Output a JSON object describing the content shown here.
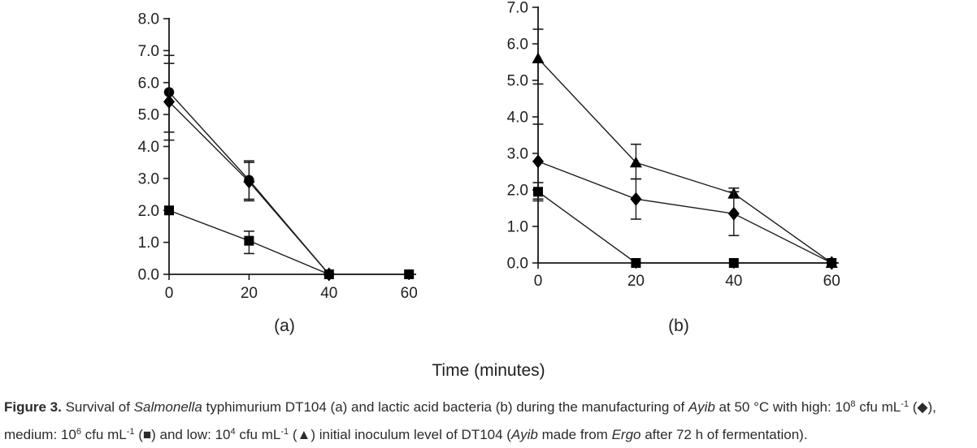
{
  "figure": {
    "x_axis_title": "Time (minutes)",
    "panel_a_label": "(a)",
    "panel_b_label": "(b)"
  },
  "colors": {
    "line": "#1c1c1c",
    "marker": "#000000",
    "axis": "#1a1a1a",
    "text": "#1f1f1f"
  },
  "chart_data": [
    {
      "type": "line",
      "panel": "(a)",
      "title": "Survival of Salmonella typhimurium DT104",
      "xlabel": "Time (minutes)",
      "ylabel": "",
      "xlim": [
        0,
        62
      ],
      "ylim": [
        0,
        8
      ],
      "xticks": [
        0,
        20,
        40,
        60
      ],
      "yticks": [
        "0.0",
        "1.0",
        "2.0",
        "3.0",
        "4.0",
        "5.0",
        "6.0",
        "7.0",
        "8.0"
      ],
      "grid": false,
      "legend": "none",
      "series": [
        {
          "name": "circle-series",
          "marker": "circle",
          "x": [
            0,
            20,
            40
          ],
          "y": [
            5.7,
            2.95,
            0
          ],
          "err": [
            [
              4.45,
              6.85
            ],
            [
              2.3,
              3.55
            ],
            null
          ]
        },
        {
          "name": "diamond-series-high-inoculum",
          "marker": "diamond",
          "x": [
            0,
            20,
            40
          ],
          "y": [
            5.4,
            2.9,
            0
          ],
          "err": [
            [
              4.2,
              6.6
            ],
            [
              2.35,
              3.5
            ],
            null
          ]
        },
        {
          "name": "square-series-medium-inoculum",
          "marker": "square",
          "x": [
            0,
            20,
            40,
            60
          ],
          "y": [
            2.0,
            1.05,
            0,
            0
          ],
          "err": [
            null,
            [
              0.65,
              1.35
            ],
            null,
            null
          ]
        }
      ]
    },
    {
      "type": "line",
      "panel": "(b)",
      "title": "Lactic acid bacteria",
      "xlabel": "Time (minutes)",
      "ylabel": "",
      "xlim": [
        0,
        62
      ],
      "ylim": [
        0,
        7
      ],
      "xticks": [
        0,
        20,
        40,
        60
      ],
      "yticks": [
        "0.0",
        "1.0",
        "2.0",
        "3.0",
        "4.0",
        "5.0",
        "6.0",
        "7.0"
      ],
      "grid": false,
      "legend": "none",
      "series": [
        {
          "name": "triangle-series-low-inoculum",
          "marker": "triangle",
          "x": [
            0,
            20,
            40,
            60
          ],
          "y": [
            5.6,
            2.75,
            1.9,
            0
          ],
          "err": [
            [
              4.9,
              6.4
            ],
            [
              2.3,
              3.25
            ],
            [
              1.78,
              2.05
            ],
            null
          ]
        },
        {
          "name": "diamond-series-high-inoculum",
          "marker": "diamond",
          "x": [
            0,
            20,
            40,
            60
          ],
          "y": [
            2.78,
            1.75,
            1.35,
            0
          ],
          "err": [
            [
              1.75,
              3.8
            ],
            [
              1.2,
              2.3
            ],
            [
              0.75,
              1.95
            ],
            null
          ]
        },
        {
          "name": "square-series-medium-inoculum",
          "marker": "square",
          "x": [
            0,
            20,
            40,
            60
          ],
          "y": [
            1.95,
            0,
            0,
            0
          ],
          "err": [
            [
              1.7,
              2.2
            ],
            null,
            null,
            null
          ]
        }
      ]
    }
  ],
  "caption": {
    "segments": [
      {
        "t": "Figure 3.",
        "b": true
      },
      {
        "t": " Survival of "
      },
      {
        "t": "Salmonella",
        "i": true
      },
      {
        "t": " typhimurium DT104 (a) and lactic acid bacteria (b) during the manufacturing of "
      },
      {
        "t": "Ayib",
        "i": true
      },
      {
        "t": " at 50 °C with high: 10"
      },
      {
        "t": "8",
        "sup": true
      },
      {
        "t": " cfu mL"
      },
      {
        "t": "-1",
        "sup": true
      },
      {
        "t": " (◆), medium: 10"
      },
      {
        "t": "6",
        "sup": true
      },
      {
        "t": " cfu mL"
      },
      {
        "t": "-1",
        "sup": true
      },
      {
        "t": " (■) and low: 10"
      },
      {
        "t": "4",
        "sup": true
      },
      {
        "t": " cfu mL"
      },
      {
        "t": "-1",
        "sup": true
      },
      {
        "t": " (▲) initial inoculum level of DT104 ("
      },
      {
        "t": "Ayib",
        "i": true
      },
      {
        "t": " made from "
      },
      {
        "t": "Ergo",
        "i": true
      },
      {
        "t": " after 72 h of fermentation)."
      }
    ]
  }
}
